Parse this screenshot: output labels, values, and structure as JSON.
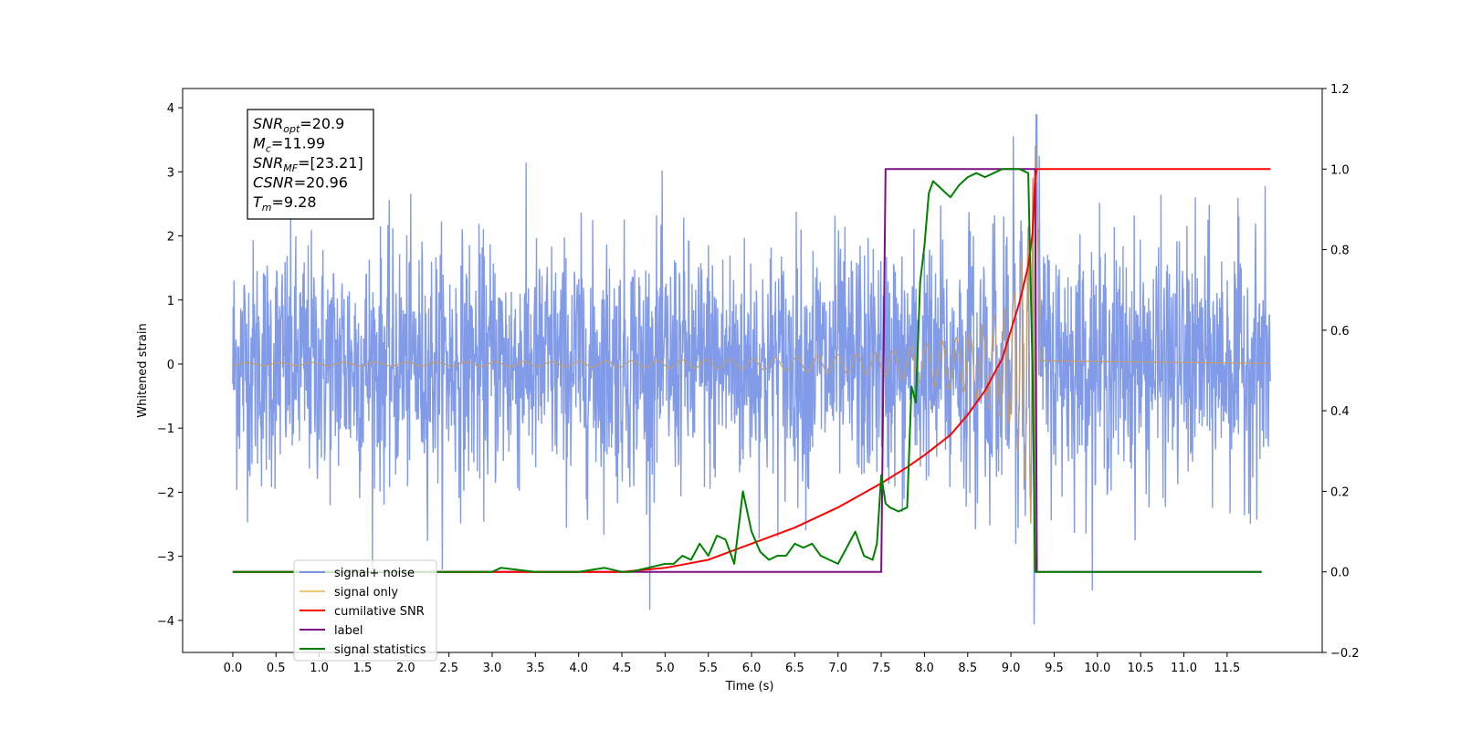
{
  "chart_data": {
    "type": "line",
    "xlabel": "Time (s)",
    "ylabel": "Whitened strain",
    "ylabel_right": "",
    "xlim": [
      -0.58,
      12.6
    ],
    "ylim": [
      -4.5,
      4.3
    ],
    "ylim_right": [
      -0.2,
      1.2
    ],
    "x_ticks": [
      0.0,
      0.5,
      1.0,
      1.5,
      2.0,
      2.5,
      3.0,
      3.5,
      4.0,
      4.5,
      5.0,
      5.5,
      6.0,
      6.5,
      7.0,
      7.5,
      8.0,
      8.5,
      9.0,
      9.5,
      10.0,
      10.5,
      11.0,
      11.5
    ],
    "x_tick_labels": [
      "0.0",
      "0.5",
      "1.0",
      "1.5",
      "2.0",
      "2.5",
      "3.0",
      "3.5",
      "4.0",
      "4.5",
      "5.0",
      "5.5",
      "6.0",
      "6.5",
      "7.0",
      "7.5",
      "8.0",
      "8.5",
      "9.0",
      "9.5",
      "10.0",
      "10.5",
      "11.0",
      "11.5"
    ],
    "y_ticks": [
      -4,
      -3,
      -2,
      -1,
      0,
      1,
      2,
      3,
      4
    ],
    "y_tick_labels": [
      "−4",
      "−3",
      "−2",
      "−1",
      "0",
      "1",
      "2",
      "3",
      "4"
    ],
    "y_right_ticks": [
      -0.2,
      0.0,
      0.2,
      0.4,
      0.6,
      0.8,
      1.0,
      1.2
    ],
    "y_right_tick_labels": [
      "−0.2",
      "0.0",
      "0.2",
      "0.4",
      "0.6",
      "0.8",
      "1.0",
      "1.2"
    ],
    "grid": false,
    "legend_position": "lower-left",
    "series": [
      {
        "name": "signal+ noise",
        "axis": "left",
        "color": "#7b96e8",
        "kind": "noise",
        "x_range": [
          0.0,
          12.0
        ],
        "noise_sigma": 1.0,
        "peak_min": -4.1,
        "peak_max": 3.9,
        "merger_time": 9.28
      },
      {
        "name": "signal only",
        "axis": "left",
        "color": "#f5c27a",
        "kind": "chirp",
        "x_range": [
          0.0,
          12.0
        ],
        "merger_time": 9.28,
        "peak_amplitude": 3.4,
        "envelope_samples": [
          [
            0.0,
            0.02
          ],
          [
            4.0,
            0.04
          ],
          [
            6.0,
            0.08
          ],
          [
            7.5,
            0.18
          ],
          [
            8.5,
            0.45
          ],
          [
            9.0,
            0.95
          ],
          [
            9.2,
            2.0
          ],
          [
            9.28,
            3.4
          ],
          [
            9.35,
            0.05
          ],
          [
            12.0,
            0.01
          ]
        ]
      },
      {
        "name": "cumilative SNR",
        "axis": "right",
        "color": "#ff0000",
        "x": [
          0.0,
          4.0,
          4.5,
          5.0,
          5.5,
          6.0,
          6.5,
          7.0,
          7.5,
          7.8,
          8.0,
          8.3,
          8.5,
          8.7,
          8.9,
          9.0,
          9.1,
          9.2,
          9.25,
          9.28,
          9.3,
          12.0
        ],
        "y": [
          0.0,
          0.0,
          0.0,
          0.01,
          0.03,
          0.07,
          0.11,
          0.16,
          0.22,
          0.26,
          0.29,
          0.34,
          0.39,
          0.45,
          0.53,
          0.6,
          0.67,
          0.76,
          0.84,
          0.98,
          1.0,
          1.0
        ]
      },
      {
        "name": "label",
        "axis": "right",
        "color": "#7b0f84",
        "x": [
          0.0,
          7.5,
          7.55,
          9.28,
          9.3,
          11.9
        ],
        "y": [
          0.0,
          0.0,
          1.0,
          1.0,
          0.0,
          0.0
        ]
      },
      {
        "name": "signal statistics",
        "axis": "right",
        "color": "#008000",
        "x": [
          0.0,
          3.0,
          3.1,
          3.5,
          4.0,
          4.3,
          4.5,
          4.6,
          4.8,
          5.0,
          5.1,
          5.2,
          5.3,
          5.4,
          5.5,
          5.6,
          5.7,
          5.8,
          5.9,
          6.0,
          6.1,
          6.2,
          6.3,
          6.4,
          6.5,
          6.6,
          6.7,
          6.8,
          6.9,
          7.0,
          7.1,
          7.2,
          7.3,
          7.4,
          7.45,
          7.5,
          7.55,
          7.6,
          7.7,
          7.8,
          7.85,
          7.9,
          7.95,
          8.0,
          8.05,
          8.1,
          8.2,
          8.3,
          8.4,
          8.5,
          8.6,
          8.7,
          8.8,
          8.9,
          9.0,
          9.1,
          9.2,
          9.25,
          9.28,
          9.3,
          9.35,
          11.9
        ],
        "y": [
          0.0,
          0.0,
          0.01,
          0.0,
          0.0,
          0.01,
          0.0,
          0.0,
          0.01,
          0.02,
          0.02,
          0.04,
          0.03,
          0.07,
          0.04,
          0.09,
          0.08,
          0.02,
          0.2,
          0.1,
          0.05,
          0.03,
          0.04,
          0.04,
          0.07,
          0.06,
          0.07,
          0.04,
          0.03,
          0.02,
          0.06,
          0.1,
          0.04,
          0.03,
          0.07,
          0.24,
          0.17,
          0.16,
          0.15,
          0.16,
          0.46,
          0.42,
          0.72,
          0.81,
          0.94,
          0.97,
          0.95,
          0.93,
          0.96,
          0.98,
          0.99,
          0.98,
          0.99,
          1.0,
          1.0,
          1.0,
          0.99,
          0.5,
          0.0,
          0.0,
          0.0,
          0.0
        ]
      }
    ],
    "annotation_lines": [
      {
        "label": "SNR",
        "sub": "opt",
        "value": "=20.9"
      },
      {
        "label": "M",
        "sub": "c",
        "value": "=11.99"
      },
      {
        "label": "SNR",
        "sub": "MF",
        "value": "=[23.21]"
      },
      {
        "label": "CSNR",
        "sub": "",
        "value": "=20.96"
      },
      {
        "label": "T",
        "sub": "m",
        "value": "=9.28"
      }
    ]
  },
  "legend": [
    {
      "label": "signal+ noise",
      "color": "#7b96e8"
    },
    {
      "label": "signal only",
      "color": "#f5c27a"
    },
    {
      "label": "cumilative SNR",
      "color": "#ff0000"
    },
    {
      "label": "label",
      "color": "#7b0f84"
    },
    {
      "label": "signal statistics",
      "color": "#008000"
    }
  ]
}
